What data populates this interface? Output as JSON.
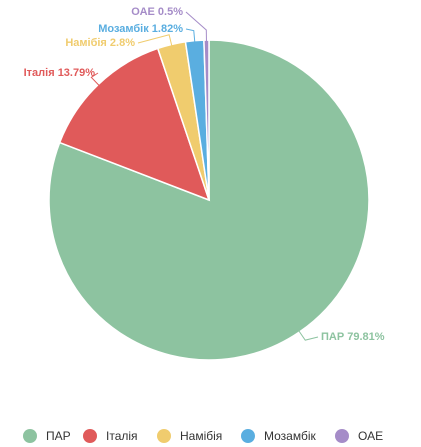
{
  "chart_data": {
    "type": "pie",
    "categories": [
      "ПАР",
      "Італія",
      "Намібія",
      "Мозамбік",
      "ОАЕ"
    ],
    "values": [
      79.81,
      13.79,
      2.8,
      1.82,
      0.5
    ],
    "value_labels": [
      "79.81%",
      "13.79%",
      "2.8%",
      "1.82%",
      "0.5%"
    ],
    "colors": [
      "#8dc3a0",
      "#e05a5a",
      "#f0cc6e",
      "#5aaee0",
      "#a58cc8"
    ],
    "legend": "bottom"
  }
}
